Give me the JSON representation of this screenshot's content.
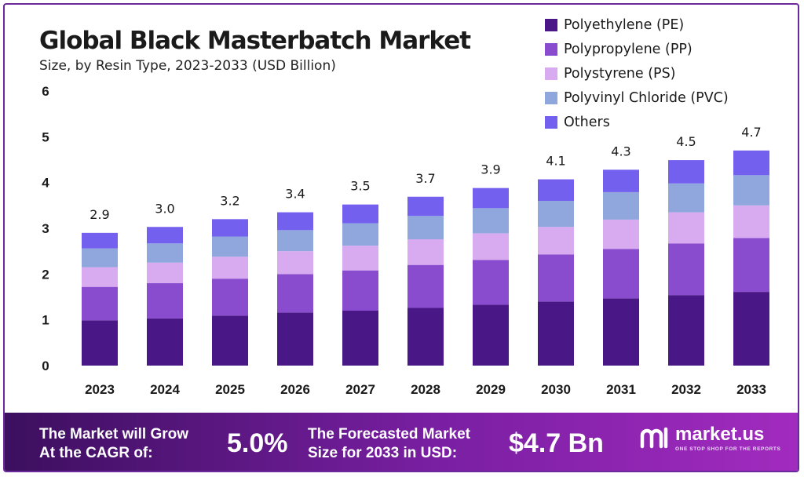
{
  "chart_data": {
    "type": "bar",
    "stacked": true,
    "title": "Global Black Masterbatch Market",
    "subtitle": "Size, by Resin Type, 2023-2033 (USD Billion)",
    "categories": [
      "2023",
      "2024",
      "2025",
      "2026",
      "2027",
      "2028",
      "2029",
      "2030",
      "2031",
      "2032",
      "2033"
    ],
    "totals": [
      "2.9",
      "3.0",
      "3.2",
      "3.4",
      "3.5",
      "3.7",
      "3.9",
      "4.1",
      "4.3",
      "4.5",
      "4.7"
    ],
    "y_ticks": [
      "0",
      "1",
      "2",
      "3",
      "4",
      "5",
      "6"
    ],
    "ylim": [
      0,
      6
    ],
    "grid": false,
    "legend_position": "top-right",
    "series": [
      {
        "name": "Polyethylene (PE)",
        "color": "#4a1786",
        "values": [
          0.99,
          1.03,
          1.09,
          1.16,
          1.2,
          1.26,
          1.33,
          1.4,
          1.47,
          1.54,
          1.61
        ]
      },
      {
        "name": "Polypropylene (PP)",
        "color": "#8a4ccf",
        "values": [
          0.73,
          0.77,
          0.81,
          0.84,
          0.88,
          0.94,
          0.98,
          1.03,
          1.08,
          1.13,
          1.18
        ]
      },
      {
        "name": "Polystyrene (PS)",
        "color": "#d8aaf0",
        "values": [
          0.43,
          0.45,
          0.48,
          0.5,
          0.54,
          0.56,
          0.58,
          0.6,
          0.64,
          0.68,
          0.71
        ]
      },
      {
        "name": "Polyvinyl Chloride (PVC)",
        "color": "#8fa7dd",
        "values": [
          0.41,
          0.42,
          0.44,
          0.46,
          0.49,
          0.51,
          0.55,
          0.57,
          0.6,
          0.63,
          0.66
        ]
      },
      {
        "name": "Others",
        "color": "#7460ef",
        "values": [
          0.34,
          0.36,
          0.38,
          0.39,
          0.41,
          0.42,
          0.44,
          0.47,
          0.49,
          0.51,
          0.54
        ]
      }
    ]
  },
  "footer": {
    "cagr_label_line1": "The Market will Grow",
    "cagr_label_line2": "At the CAGR of:",
    "cagr_value": "5.0%",
    "forecast_label_line1": "The Forecasted Market",
    "forecast_label_line2": "Size for 2033 in USD:",
    "forecast_value": "$4.7 Bn",
    "brand_name": "market.us",
    "brand_tagline": "ONE STOP SHOP FOR THE REPORTS"
  }
}
